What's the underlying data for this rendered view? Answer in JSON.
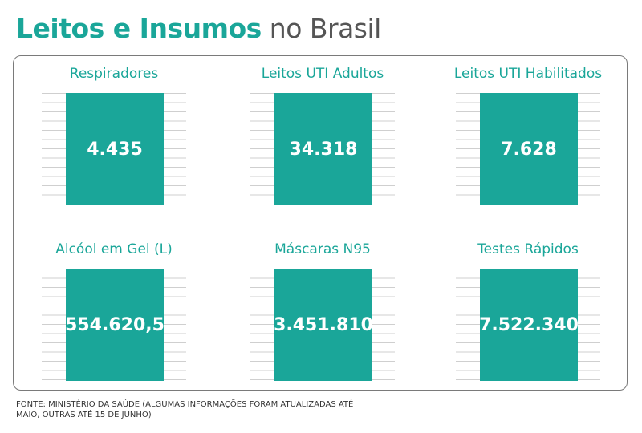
{
  "title": {
    "bold": "Leitos e Insumos",
    "light": "no Brasil"
  },
  "colors": {
    "accent": "#1aa699",
    "text_dark": "#555555",
    "border": "#7a7a7a"
  },
  "cards": [
    {
      "label": "Respiradores",
      "value": "4.435"
    },
    {
      "label": "Leitos UTI Adultos",
      "value": "34.318"
    },
    {
      "label": "Leitos UTI Habilitados",
      "value": "7.628"
    },
    {
      "label": "Alcóol em Gel (L)",
      "value": "554.620,5"
    },
    {
      "label": "Máscaras N95",
      "value": "3.451.810"
    },
    {
      "label": "Testes Rápidos",
      "value": "7.522.340"
    }
  ],
  "footer": {
    "line1": "FONTE: MINISTÉRIO DA SAÚDE (ALGUMAS INFORMAÇÕES FORAM ATUALIZADAS ATÉ",
    "line2": "MAIO, OUTRAS ATÉ 15 DE JUNHO)"
  }
}
